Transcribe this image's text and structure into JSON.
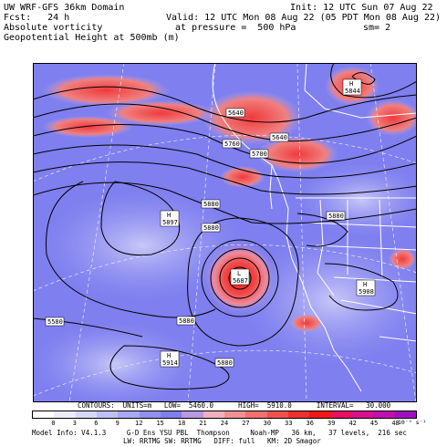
{
  "header": {
    "model_title": "UW WRF-GFS 36km Domain",
    "init_label": "Init: 12 UTC Sun 07 Aug 22",
    "fcst_label": "Fcst:   24 h",
    "valid_label": "Valid: 12 UTC Mon 08 Aug 22 (05 PDT Mon 08 Aug 22)",
    "field1": "Absolute vorticity",
    "pressure_label": "at pressure =  500 hPa",
    "sm_label": "sm= 2",
    "field2": "Geopotential Height at 500mb (m)"
  },
  "map": {
    "contour_labels": [
      "5640",
      "5640",
      "5700",
      "5760",
      "5880",
      "5880",
      "5880",
      "5880",
      "5880",
      "5580"
    ],
    "highs_lows": [
      {
        "letter": "H",
        "value": "5844"
      },
      {
        "letter": "H",
        "value": "5897"
      },
      {
        "letter": "L",
        "value": "5687"
      },
      {
        "letter": "H",
        "value": "5908"
      },
      {
        "letter": "H",
        "value": "5914"
      }
    ]
  },
  "footer": {
    "contours_line": "CONTOURS:  UNITS=m   LOW=  5460.0      HIGH=  5910.0      INTERVAL=   30.000",
    "colorbar_ticks": [
      "0",
      "3",
      "6",
      "9",
      "12",
      "15",
      "18",
      "21",
      "24",
      "27",
      "30",
      "33",
      "36",
      "39",
      "42",
      "45",
      "48"
    ],
    "colorbar_units": "10⁻⁵ s⁻¹",
    "model_info_1": "Model Info: V4.1.3     G-D Ens YSU PBL  Thompson     Noah-MP   36 km,   37 levels,  216 sec",
    "model_info_2": "LW: RRTMG SW: RRTMG   DIFF: full   KM: 2D Smagor"
  },
  "colors": {
    "ocean_base": "#7d7df0",
    "vort_low": "#b5b5f5",
    "vort_high": "#f03030",
    "vort_max": "#ff1818",
    "land_line": "#ffffff",
    "contour": "#000000"
  }
}
